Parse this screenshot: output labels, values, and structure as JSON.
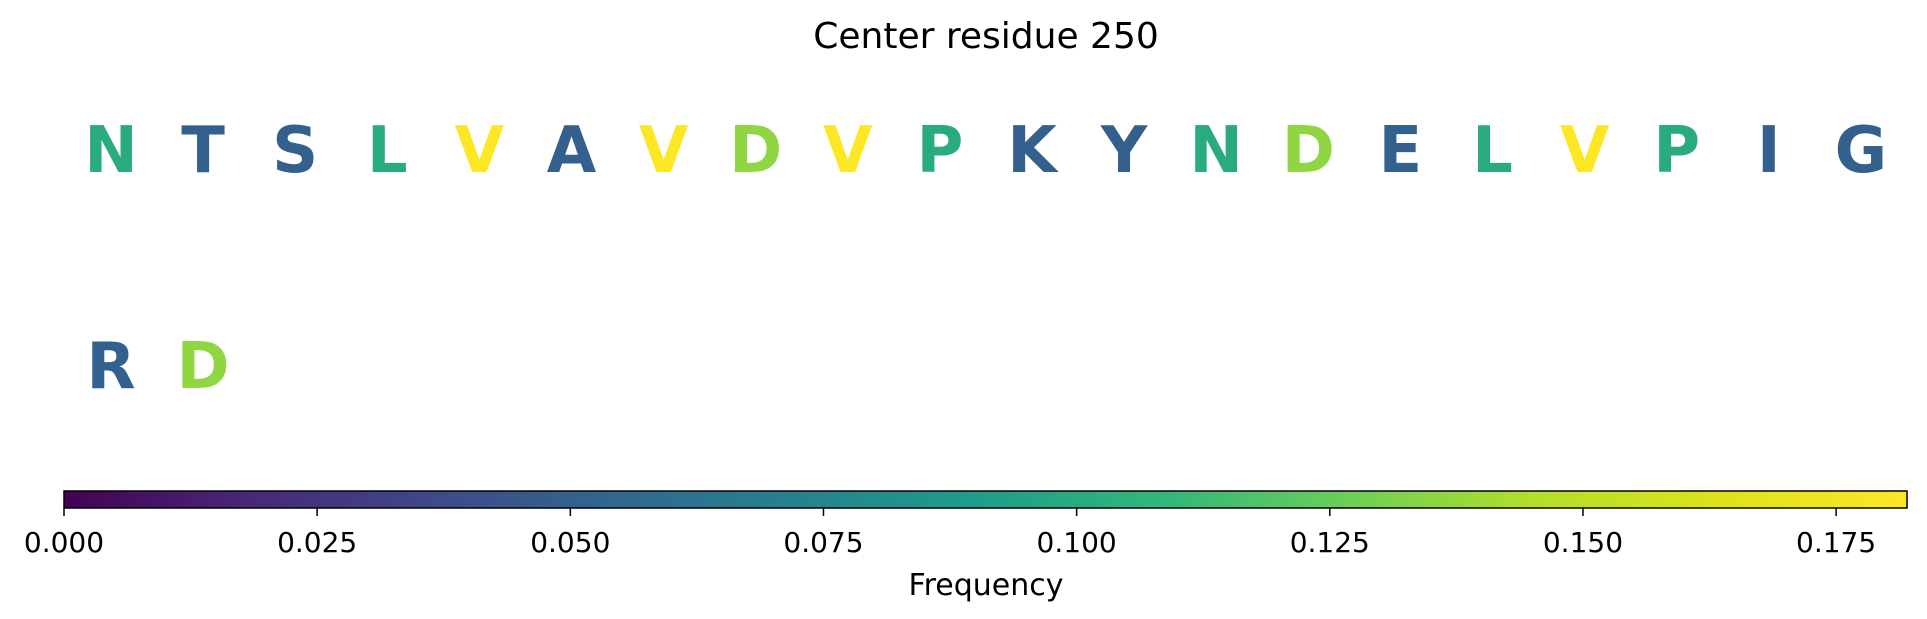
{
  "chart_data": {
    "type": "heatmap",
    "title": "Center residue 250",
    "residues": [
      {
        "letter": "N",
        "frequency": 0.1
      },
      {
        "letter": "T",
        "frequency": 0.05
      },
      {
        "letter": "S",
        "frequency": 0.05
      },
      {
        "letter": "L",
        "frequency": 0.1
      },
      {
        "letter": "V",
        "frequency": 0.182
      },
      {
        "letter": "A",
        "frequency": 0.05
      },
      {
        "letter": "V",
        "frequency": 0.182
      },
      {
        "letter": "D",
        "frequency": 0.136
      },
      {
        "letter": "V",
        "frequency": 0.182
      },
      {
        "letter": "P",
        "frequency": 0.1
      },
      {
        "letter": "K",
        "frequency": 0.05
      },
      {
        "letter": "Y",
        "frequency": 0.05
      },
      {
        "letter": "N",
        "frequency": 0.1
      },
      {
        "letter": "D",
        "frequency": 0.136
      },
      {
        "letter": "E",
        "frequency": 0.05
      },
      {
        "letter": "L",
        "frequency": 0.1
      },
      {
        "letter": "V",
        "frequency": 0.182
      },
      {
        "letter": "P",
        "frequency": 0.1
      },
      {
        "letter": "I",
        "frequency": 0.05
      },
      {
        "letter": "G",
        "frequency": 0.05
      },
      {
        "letter": "R",
        "frequency": 0.05
      },
      {
        "letter": "D",
        "frequency": 0.136
      }
    ],
    "colorbar": {
      "label": "Frequency",
      "colormap": "viridis",
      "range": [
        0,
        0.182
      ],
      "ticks": [
        0.0,
        0.025,
        0.05,
        0.075,
        0.1,
        0.125,
        0.15,
        0.175
      ],
      "tick_labels": [
        "0.000",
        "0.025",
        "0.050",
        "0.075",
        "0.100",
        "0.125",
        "0.150",
        "0.175"
      ]
    }
  }
}
